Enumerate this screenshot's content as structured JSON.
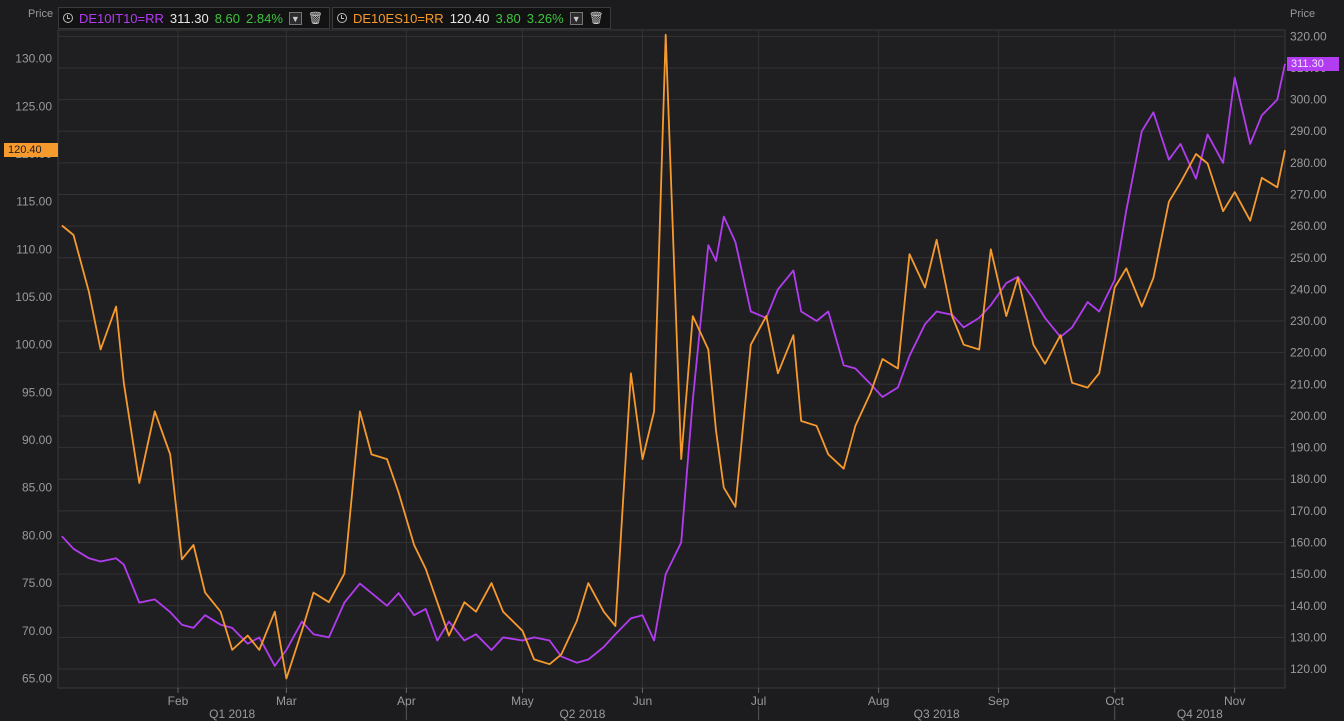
{
  "legend": [
    {
      "name": "DE10IT10=RR",
      "price": "311.30",
      "change": "8.60",
      "pct": "2.84%",
      "color": "#b23cf0",
      "menu_icon": "chevron-down-icon",
      "delete_icon": "trash-icon",
      "clock_icon": "clock-icon"
    },
    {
      "name": "DE10ES10=RR",
      "price": "120.40",
      "change": "3.80",
      "pct": "3.26%",
      "color": "#f79a2e",
      "menu_icon": "chevron-down-icon",
      "delete_icon": "trash-icon",
      "clock_icon": "clock-icon"
    }
  ],
  "axes": {
    "left_title": "Price",
    "right_title": "Price",
    "left_ticks": [
      "65.00",
      "70.00",
      "75.00",
      "80.00",
      "85.00",
      "90.00",
      "95.00",
      "100.00",
      "105.00",
      "110.00",
      "115.00",
      "120.00",
      "125.00",
      "130.00"
    ],
    "right_ticks": [
      "120.00",
      "130.00",
      "140.00",
      "150.00",
      "160.00",
      "170.00",
      "180.00",
      "190.00",
      "200.00",
      "210.00",
      "220.00",
      "230.00",
      "240.00",
      "250.00",
      "260.00",
      "270.00",
      "280.00",
      "290.00",
      "300.00",
      "310.00",
      "320.00"
    ],
    "month_labels": [
      "Feb",
      "Mar",
      "Apr",
      "May",
      "Jun",
      "Jul",
      "Aug",
      "Sep",
      "Oct",
      "Nov"
    ],
    "quarter_labels": [
      "Q1 2018",
      "Q2 2018",
      "Q3 2018",
      "Q4 2018"
    ]
  },
  "tags": {
    "left": {
      "text": "120.40",
      "color": "#f79a2e"
    },
    "right": {
      "text": "311.30",
      "color": "#b23cf0"
    }
  },
  "chart_data": {
    "type": "line",
    "x_start": "2018-01-01",
    "x_end": "2018-11-14",
    "y_left_range": [
      64,
      133
    ],
    "y_right_range": [
      114,
      322
    ],
    "grid": true,
    "series": [
      {
        "name": "DE10IT10=RR",
        "axis": "right",
        "color": "#b23cf0",
        "points": [
          [
            "2018-01-02",
            162
          ],
          [
            "2018-01-05",
            158
          ],
          [
            "2018-01-09",
            155
          ],
          [
            "2018-01-12",
            154
          ],
          [
            "2018-01-16",
            155
          ],
          [
            "2018-01-18",
            153
          ],
          [
            "2018-01-22",
            141
          ],
          [
            "2018-01-26",
            142
          ],
          [
            "2018-01-30",
            138
          ],
          [
            "2018-02-02",
            134
          ],
          [
            "2018-02-05",
            133
          ],
          [
            "2018-02-08",
            137
          ],
          [
            "2018-02-12",
            134
          ],
          [
            "2018-02-15",
            133
          ],
          [
            "2018-02-19",
            128
          ],
          [
            "2018-02-22",
            130
          ],
          [
            "2018-02-26",
            121
          ],
          [
            "2018-03-01",
            126
          ],
          [
            "2018-03-05",
            135
          ],
          [
            "2018-03-08",
            131
          ],
          [
            "2018-03-12",
            130
          ],
          [
            "2018-03-16",
            141
          ],
          [
            "2018-03-20",
            147
          ],
          [
            "2018-03-23",
            144
          ],
          [
            "2018-03-27",
            140
          ],
          [
            "2018-03-30",
            144
          ],
          [
            "2018-04-03",
            137
          ],
          [
            "2018-04-06",
            139
          ],
          [
            "2018-04-09",
            129
          ],
          [
            "2018-04-12",
            135
          ],
          [
            "2018-04-16",
            129
          ],
          [
            "2018-04-19",
            131
          ],
          [
            "2018-04-23",
            126
          ],
          [
            "2018-04-26",
            130
          ],
          [
            "2018-05-01",
            129
          ],
          [
            "2018-05-04",
            130
          ],
          [
            "2018-05-08",
            129
          ],
          [
            "2018-05-11",
            124
          ],
          [
            "2018-05-15",
            122
          ],
          [
            "2018-05-18",
            123
          ],
          [
            "2018-05-22",
            127
          ],
          [
            "2018-05-25",
            131
          ],
          [
            "2018-05-29",
            136
          ],
          [
            "2018-06-01",
            137
          ],
          [
            "2018-06-04",
            129
          ],
          [
            "2018-06-07",
            150
          ],
          [
            "2018-06-11",
            160
          ],
          [
            "2018-06-14",
            205
          ],
          [
            "2018-06-18",
            254
          ],
          [
            "2018-06-20",
            249
          ],
          [
            "2018-06-22",
            263
          ],
          [
            "2018-06-25",
            255
          ],
          [
            "2018-06-29",
            233
          ],
          [
            "2018-07-03",
            231
          ],
          [
            "2018-07-06",
            240
          ],
          [
            "2018-07-10",
            246
          ],
          [
            "2018-07-12",
            233
          ],
          [
            "2018-07-16",
            230
          ],
          [
            "2018-07-19",
            233
          ],
          [
            "2018-07-23",
            216
          ],
          [
            "2018-07-26",
            215
          ],
          [
            "2018-07-30",
            210
          ],
          [
            "2018-08-02",
            206
          ],
          [
            "2018-08-06",
            209
          ],
          [
            "2018-08-09",
            219
          ],
          [
            "2018-08-13",
            229
          ],
          [
            "2018-08-16",
            233
          ],
          [
            "2018-08-20",
            232
          ],
          [
            "2018-08-23",
            228
          ],
          [
            "2018-08-27",
            231
          ],
          [
            "2018-08-30",
            235
          ],
          [
            "2018-09-03",
            242
          ],
          [
            "2018-09-06",
            244
          ],
          [
            "2018-09-10",
            237
          ],
          [
            "2018-09-13",
            231
          ],
          [
            "2018-09-17",
            225
          ],
          [
            "2018-09-20",
            228
          ],
          [
            "2018-09-24",
            236
          ],
          [
            "2018-09-27",
            233
          ],
          [
            "2018-10-01",
            243
          ],
          [
            "2018-10-04",
            265
          ],
          [
            "2018-10-08",
            290
          ],
          [
            "2018-10-11",
            296
          ],
          [
            "2018-10-15",
            281
          ],
          [
            "2018-10-18",
            286
          ],
          [
            "2018-10-22",
            275
          ],
          [
            "2018-10-25",
            289
          ],
          [
            "2018-10-29",
            280
          ],
          [
            "2018-11-01",
            307
          ],
          [
            "2018-11-05",
            286
          ],
          [
            "2018-11-08",
            295
          ],
          [
            "2018-11-12",
            300
          ],
          [
            "2018-11-14",
            311.3
          ]
        ]
      },
      {
        "name": "DE10ES10=RR",
        "axis": "left",
        "color": "#f79a2e",
        "points": [
          [
            "2018-01-02",
            112.5
          ],
          [
            "2018-01-05",
            111.5
          ],
          [
            "2018-01-09",
            105.5
          ],
          [
            "2018-01-12",
            99.5
          ],
          [
            "2018-01-16",
            104
          ],
          [
            "2018-01-18",
            96
          ],
          [
            "2018-01-22",
            85.5
          ],
          [
            "2018-01-26",
            93
          ],
          [
            "2018-01-30",
            88.5
          ],
          [
            "2018-02-02",
            77.5
          ],
          [
            "2018-02-05",
            79
          ],
          [
            "2018-02-08",
            74
          ],
          [
            "2018-02-12",
            72
          ],
          [
            "2018-02-15",
            68
          ],
          [
            "2018-02-19",
            69.5
          ],
          [
            "2018-02-22",
            68
          ],
          [
            "2018-02-26",
            72
          ],
          [
            "2018-03-01",
            65
          ],
          [
            "2018-03-05",
            70
          ],
          [
            "2018-03-08",
            74
          ],
          [
            "2018-03-12",
            73
          ],
          [
            "2018-03-16",
            76
          ],
          [
            "2018-03-20",
            93
          ],
          [
            "2018-03-23",
            88.5
          ],
          [
            "2018-03-27",
            88
          ],
          [
            "2018-03-30",
            84.5
          ],
          [
            "2018-04-03",
            79
          ],
          [
            "2018-04-06",
            76.5
          ],
          [
            "2018-04-09",
            73
          ],
          [
            "2018-04-12",
            69.5
          ],
          [
            "2018-04-16",
            73
          ],
          [
            "2018-04-19",
            72
          ],
          [
            "2018-04-23",
            75
          ],
          [
            "2018-04-26",
            72
          ],
          [
            "2018-05-01",
            70
          ],
          [
            "2018-05-04",
            67
          ],
          [
            "2018-05-08",
            66.5
          ],
          [
            "2018-05-11",
            67.5
          ],
          [
            "2018-05-15",
            71
          ],
          [
            "2018-05-18",
            75
          ],
          [
            "2018-05-22",
            72
          ],
          [
            "2018-05-25",
            70.5
          ],
          [
            "2018-05-29",
            97
          ],
          [
            "2018-06-01",
            88
          ],
          [
            "2018-06-04",
            93
          ],
          [
            "2018-06-07",
            132.5
          ],
          [
            "2018-06-11",
            88
          ],
          [
            "2018-06-14",
            103
          ],
          [
            "2018-06-18",
            99.5
          ],
          [
            "2018-06-20",
            91
          ],
          [
            "2018-06-22",
            85
          ],
          [
            "2018-06-25",
            83
          ],
          [
            "2018-06-29",
            100
          ],
          [
            "2018-07-03",
            103
          ],
          [
            "2018-07-06",
            97
          ],
          [
            "2018-07-10",
            101
          ],
          [
            "2018-07-12",
            92
          ],
          [
            "2018-07-16",
            91.5
          ],
          [
            "2018-07-19",
            88.5
          ],
          [
            "2018-07-23",
            87
          ],
          [
            "2018-07-26",
            91.5
          ],
          [
            "2018-07-30",
            95
          ],
          [
            "2018-08-02",
            98.5
          ],
          [
            "2018-08-06",
            97.5
          ],
          [
            "2018-08-09",
            109.5
          ],
          [
            "2018-08-13",
            106
          ],
          [
            "2018-08-16",
            111
          ],
          [
            "2018-08-20",
            103
          ],
          [
            "2018-08-23",
            100
          ],
          [
            "2018-08-27",
            99.5
          ],
          [
            "2018-08-30",
            110
          ],
          [
            "2018-09-03",
            103
          ],
          [
            "2018-09-06",
            107
          ],
          [
            "2018-09-10",
            100
          ],
          [
            "2018-09-13",
            98
          ],
          [
            "2018-09-17",
            101
          ],
          [
            "2018-09-20",
            96
          ],
          [
            "2018-09-24",
            95.5
          ],
          [
            "2018-09-27",
            97
          ],
          [
            "2018-10-01",
            106
          ],
          [
            "2018-10-04",
            108
          ],
          [
            "2018-10-08",
            104
          ],
          [
            "2018-10-11",
            107
          ],
          [
            "2018-10-15",
            115
          ],
          [
            "2018-10-18",
            117
          ],
          [
            "2018-10-22",
            120
          ],
          [
            "2018-10-25",
            119
          ],
          [
            "2018-10-29",
            114
          ],
          [
            "2018-11-01",
            116
          ],
          [
            "2018-11-05",
            113
          ],
          [
            "2018-11-08",
            117.5
          ],
          [
            "2018-11-12",
            116.5
          ],
          [
            "2018-11-14",
            120.4
          ]
        ]
      }
    ]
  }
}
